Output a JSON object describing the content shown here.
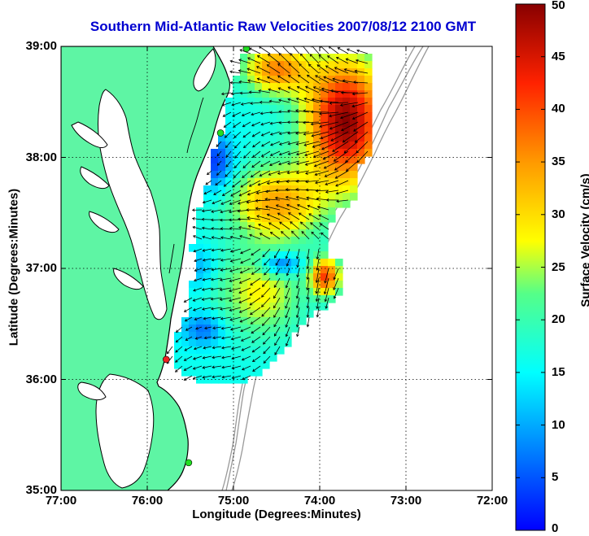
{
  "title": "Southern Mid-Atlantic Raw Velocities 2007/08/12 2100 GMT",
  "chart_data": {
    "type": "heatmap",
    "xlabel": "Longitude (Degrees:Minutes)",
    "ylabel": "Latitude (Degrees:Minutes)",
    "x_ticks": [
      "77:00",
      "76:00",
      "75:00",
      "74:00",
      "73:00",
      "72:00"
    ],
    "y_ticks": [
      "39:00",
      "38:00",
      "37:00",
      "36:00",
      "35:00"
    ],
    "xlim": [
      -77,
      -72
    ],
    "ylim": [
      35,
      39
    ],
    "grid": true,
    "colorbar": {
      "label": "Surface Velocity (cm/s)",
      "ticks": [
        "0",
        "5",
        "10",
        "15",
        "20",
        "25",
        "30",
        "35",
        "40",
        "45",
        "50"
      ],
      "range": [
        0,
        50
      ],
      "colormap": "jet"
    },
    "colors": {
      "land": "#5ef5a4",
      "water": "#ffffff",
      "coast": "#000000",
      "bathymetry": "#999999",
      "station_green": "#22dd22",
      "station_red": "#ee2222"
    },
    "stations": [
      {
        "lon": -74.85,
        "lat": 38.98,
        "color": "green"
      },
      {
        "lon": -75.15,
        "lat": 38.22,
        "color": "green"
      },
      {
        "lon": -75.78,
        "lat": 36.18,
        "color": "red"
      },
      {
        "lon": -75.52,
        "lat": 35.25,
        "color": "green"
      }
    ]
  }
}
